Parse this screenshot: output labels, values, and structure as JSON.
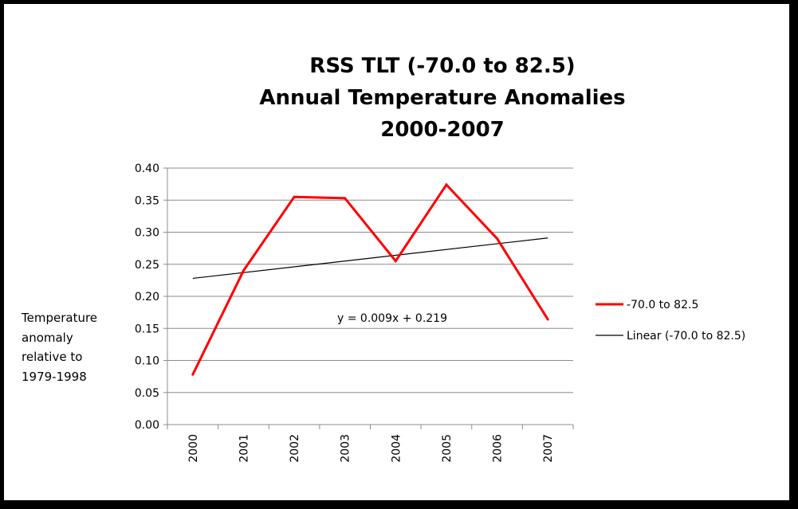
{
  "chart_data": {
    "type": "line",
    "title_lines": [
      "RSS TLT (-70.0 to 82.5)",
      "Annual Temperature Anomalies",
      "2000-2007"
    ],
    "ylabel_lines": [
      "Temperature",
      "anomaly",
      "relative to",
      "1979-1998"
    ],
    "xlabel": "",
    "categories": [
      "2000",
      "2001",
      "2002",
      "2003",
      "2004",
      "2005",
      "2006",
      "2007"
    ],
    "ylim": [
      0,
      0.4
    ],
    "yticks": [
      "0.00",
      "0.05",
      "0.10",
      "0.15",
      "0.20",
      "0.25",
      "0.30",
      "0.35",
      "0.40"
    ],
    "grid": true,
    "series": [
      {
        "name": "-70.0 to 82.5",
        "color": "#ff0000",
        "values": [
          0.078,
          0.24,
          0.355,
          0.353,
          0.255,
          0.374,
          0.29,
          0.164
        ]
      }
    ],
    "trendline": {
      "name": "Linear (-70.0 to 82.5)",
      "color": "#000000",
      "slope": 0.009,
      "intercept": 0.219,
      "equation": "y = 0.009x + 0.219"
    },
    "legend_position": "right"
  }
}
